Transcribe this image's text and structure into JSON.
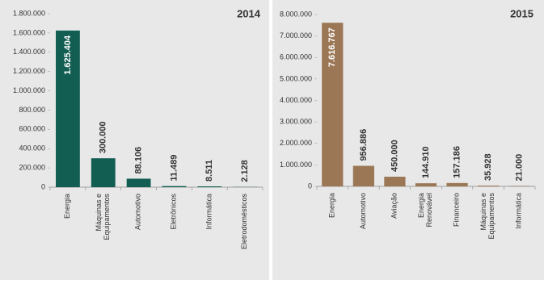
{
  "chart_data": [
    {
      "type": "bar",
      "title": "2014",
      "categories": [
        "Energia",
        "Máquinas e Equipamentos",
        "Automotivo",
        "Eletrônicos",
        "Informática",
        "Eletrodomésticos"
      ],
      "values": [
        1625404,
        300000,
        88106,
        11489,
        8511,
        2128
      ],
      "value_labels": [
        "1.625.404",
        "300.000",
        "88.106",
        "11.489",
        "8.511",
        "2.128"
      ],
      "color": "#135e53",
      "ylim": [
        0,
        1800000
      ],
      "yticks": [
        0,
        {
          "value": 200000,
          "label": "200.000"
        },
        {
          "value": 400000,
          "label": "400.000"
        },
        {
          "value": 600000,
          "label": "600.000"
        },
        {
          "value": 800000,
          "label": "800.000"
        },
        {
          "value": 1000000,
          "label": "1.000.000"
        },
        {
          "value": 1200000,
          "label": "1.200.000"
        },
        {
          "value": 1400000,
          "label": "1.400.000"
        },
        {
          "value": 1600000,
          "label": "1.600.000"
        },
        {
          "value": 1800000,
          "label": "1.800.000"
        }
      ]
    },
    {
      "type": "bar",
      "title": "2015",
      "categories": [
        "Energia",
        "Automotivo",
        "Aviação",
        "Energia Renovável",
        "Financeiro",
        "Máquinas e Equipamentos",
        "Informática"
      ],
      "values": [
        7616767,
        956886,
        450000,
        144910,
        157186,
        35928,
        21000
      ],
      "value_labels": [
        "7.616.767",
        "956.886",
        "450.000",
        "144.910",
        "157.186",
        "35.928",
        "21.000"
      ],
      "color": "#9b7755",
      "ylim": [
        0,
        8000000
      ],
      "yticks": [
        0,
        {
          "value": 1000000,
          "label": "1.000.000"
        },
        {
          "value": 2000000,
          "label": "2.000.000"
        },
        {
          "value": 3000000,
          "label": "3.000.000"
        },
        {
          "value": 4000000,
          "label": "4.000.000"
        },
        {
          "value": 5000000,
          "label": "5.000.000"
        },
        {
          "value": 6000000,
          "label": "6.000.000"
        },
        {
          "value": 7000000,
          "label": "7.000.000"
        },
        {
          "value": 8000000,
          "label": "8.000.000"
        }
      ]
    }
  ]
}
